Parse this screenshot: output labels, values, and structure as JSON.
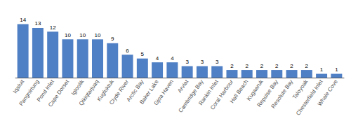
{
  "chart_data": {
    "type": "bar",
    "categories": [
      "Iqaluit",
      "Pangnirtung",
      "Pond Inlet",
      "Cape Dorset",
      "Igloolik",
      "Qikiqtarjuaq",
      "Kugluktuk",
      "Clyde River",
      "Arctic Bay",
      "Baker Lake",
      "Gjoa Haven",
      "Arviat",
      "Cambridge Bay",
      "Rankin Inlet",
      "Coral Harbour",
      "Hall Beach",
      "Kugaaruk",
      "Repulse Bay",
      "Resolute Bay",
      "Taloyoak",
      "Chesterfield Inlet",
      "Whale Cove"
    ],
    "values": [
      14,
      13,
      12,
      10,
      10,
      10,
      9,
      6,
      5,
      4,
      4,
      3,
      3,
      3,
      2,
      2,
      2,
      2,
      2,
      2,
      1,
      1
    ],
    "color": "#4f7fc4",
    "ylim": [
      0,
      17
    ],
    "data_labels": true,
    "tick_labels": "x",
    "grid": false
  }
}
